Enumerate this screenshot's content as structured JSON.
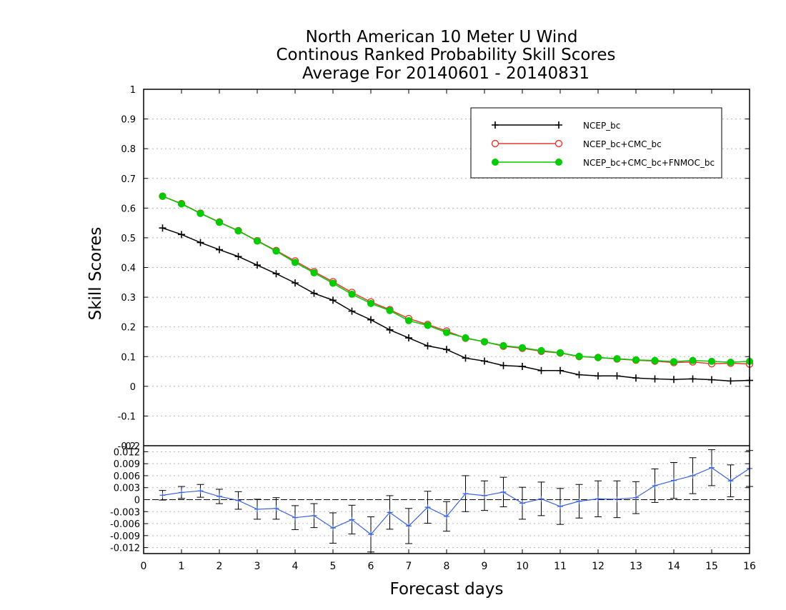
{
  "title_lines": [
    "North American 10 Meter U Wind",
    "Continous Ranked Probability Skill Scores",
    "Average For 20140601 - 20140831"
  ],
  "y_label": "Skill Scores",
  "x_label": "Forecast days",
  "colors": {
    "ncep": "#000000",
    "cmc": "#e8392e",
    "fnmoc": "#00cc00",
    "diff": "#3a62e0"
  },
  "legend_placement": "top-right",
  "chart_data": [
    {
      "type": "line",
      "xlim": [
        0,
        16
      ],
      "ylim": [
        -0.2,
        1
      ],
      "y_ticks": [
        "1",
        "0.9",
        "0.8",
        "0.7",
        "0.6",
        "0.5",
        "0.4",
        "0.3",
        "0.2",
        "0.1",
        "0",
        "-0.1",
        "-0.2"
      ],
      "y_tick_values": [
        1,
        0.9,
        0.8,
        0.7,
        0.6,
        0.5,
        0.4,
        0.3,
        0.2,
        0.1,
        0,
        -0.1,
        -0.2
      ],
      "grid": true,
      "x": [
        0.5,
        1,
        1.5,
        2,
        2.5,
        3,
        3.5,
        4,
        4.5,
        5,
        5.5,
        6,
        6.5,
        7,
        7.5,
        8,
        8.5,
        9,
        9.5,
        10,
        10.5,
        11,
        11.5,
        12,
        12.5,
        13,
        13.5,
        14,
        14.5,
        15,
        15.5,
        16
      ],
      "series": [
        {
          "name": "NCEP_bc",
          "marker": "plus",
          "values": [
            0.533,
            0.511,
            0.484,
            0.46,
            0.437,
            0.408,
            0.379,
            0.348,
            0.313,
            0.29,
            0.253,
            0.224,
            0.19,
            0.163,
            0.136,
            0.124,
            0.095,
            0.085,
            0.07,
            0.067,
            0.053,
            0.053,
            0.039,
            0.035,
            0.035,
            0.028,
            0.025,
            0.023,
            0.025,
            0.022,
            0.018,
            0.02
          ]
        },
        {
          "name": "NCEP_bc+CMC_bc",
          "marker": "open-circle",
          "values": [
            0.64,
            0.615,
            0.583,
            0.553,
            0.524,
            0.49,
            0.457,
            0.422,
            0.386,
            0.352,
            0.316,
            0.284,
            0.258,
            0.228,
            0.208,
            0.186,
            0.162,
            0.15,
            0.135,
            0.128,
            0.118,
            0.112,
            0.1,
            0.097,
            0.092,
            0.088,
            0.085,
            0.08,
            0.082,
            0.076,
            0.078,
            0.075
          ]
        },
        {
          "name": "NCEP_bc+CMC_bc+FNMOC_bc",
          "marker": "filled-circle",
          "values": [
            0.64,
            0.614,
            0.582,
            0.552,
            0.523,
            0.489,
            0.455,
            0.417,
            0.382,
            0.347,
            0.31,
            0.279,
            0.255,
            0.221,
            0.205,
            0.181,
            0.163,
            0.15,
            0.137,
            0.13,
            0.12,
            0.113,
            0.101,
            0.097,
            0.093,
            0.089,
            0.087,
            0.083,
            0.087,
            0.084,
            0.081,
            0.084
          ]
        }
      ]
    },
    {
      "type": "line",
      "xlim": [
        0,
        16
      ],
      "ylim": [
        -0.0135,
        0.0135
      ],
      "y_ticks": [
        "0.012",
        "0.009",
        "0.006",
        "0.003",
        "0",
        "-0.003",
        "-0.006",
        "-0.009",
        "-0.012"
      ],
      "y_tick_values": [
        0.012,
        0.009,
        0.006,
        0.003,
        0,
        -0.003,
        -0.006,
        -0.009,
        -0.012
      ],
      "top_overlap_label": "-0.2",
      "x_ticks": [
        "0",
        "1",
        "2",
        "3",
        "4",
        "5",
        "6",
        "7",
        "8",
        "9",
        "10",
        "11",
        "12",
        "13",
        "14",
        "15",
        "16"
      ],
      "x_tick_values": [
        0,
        1,
        2,
        3,
        4,
        5,
        6,
        7,
        8,
        9,
        10,
        11,
        12,
        13,
        14,
        15,
        16
      ],
      "x": [
        0.5,
        1,
        1.5,
        2,
        2.5,
        3,
        3.5,
        4,
        4.5,
        5,
        5.5,
        6,
        6.5,
        7,
        7.5,
        8,
        8.5,
        9,
        9.5,
        10,
        10.5,
        11,
        11.5,
        12,
        12.5,
        13,
        13.5,
        14,
        14.5,
        15,
        15.5,
        16
      ],
      "series": [
        {
          "values": [
            0.0011,
            0.0018,
            0.0022,
            0.0008,
            -0.0002,
            -0.0024,
            -0.0022,
            -0.0045,
            -0.004,
            -0.0071,
            -0.005,
            -0.0087,
            -0.0032,
            -0.0066,
            -0.0019,
            -0.0042,
            0.0015,
            0.001,
            0.0019,
            -0.0009,
            0.0002,
            -0.0017,
            -0.0004,
            0.0002,
            0.0001,
            0.0005,
            0.0035,
            0.0048,
            0.006,
            0.008,
            0.0047,
            0.0078
          ],
          "errors": [
            0.0012,
            0.0015,
            0.0016,
            0.0018,
            0.0022,
            0.0025,
            0.0027,
            0.003,
            0.003,
            0.0038,
            0.0036,
            0.0044,
            0.0042,
            0.0044,
            0.004,
            0.0037,
            0.0045,
            0.0037,
            0.0037,
            0.004,
            0.0042,
            0.0045,
            0.0042,
            0.0045,
            0.0046,
            0.004,
            0.0042,
            0.0045,
            0.0045,
            0.0045,
            0.004,
            0.0045
          ]
        }
      ]
    }
  ]
}
